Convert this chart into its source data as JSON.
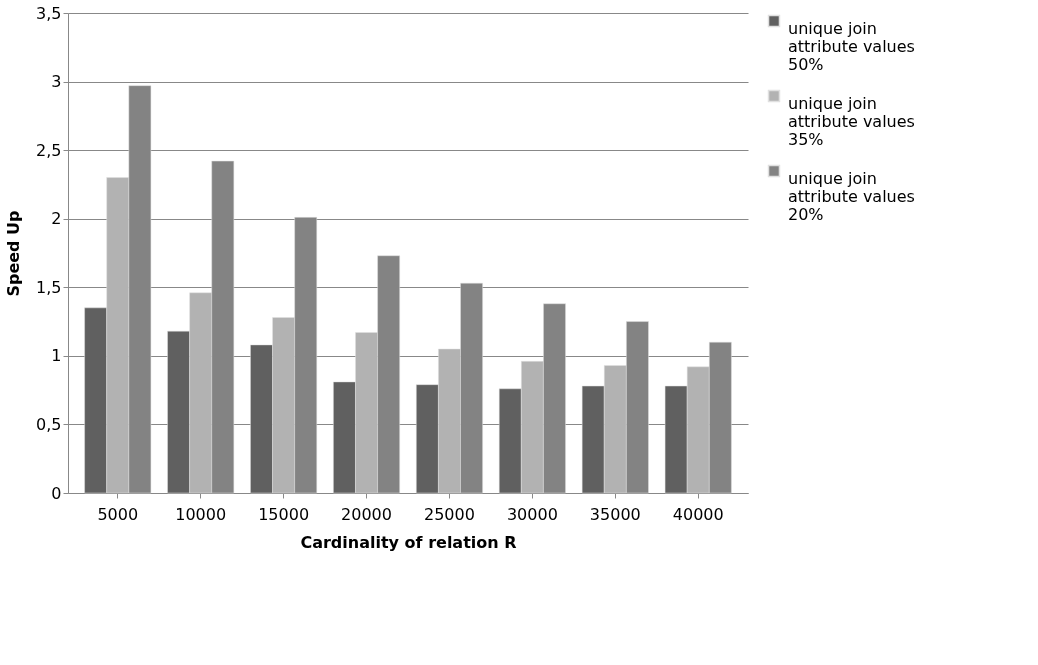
{
  "chart_data": {
    "type": "bar",
    "xlabel": "Cardinality of relation R",
    "ylabel": "Speed Up",
    "categories": [
      "5000",
      "10000",
      "15000",
      "20000",
      "25000",
      "30000",
      "35000",
      "40000"
    ],
    "series": [
      {
        "name": "unique join attribute values 50%",
        "color": "#606060",
        "values": [
          1.35,
          1.18,
          1.08,
          0.81,
          0.79,
          0.76,
          0.78,
          0.78
        ]
      },
      {
        "name": "unique join attribute values 35%",
        "color": "#b2b2b2",
        "values": [
          2.3,
          1.46,
          1.28,
          1.17,
          1.05,
          0.96,
          0.93,
          0.92
        ]
      },
      {
        "name": "unique join attribute values 20%",
        "color": "#838383",
        "values": [
          2.97,
          2.42,
          2.01,
          1.73,
          1.53,
          1.38,
          1.25,
          1.1
        ]
      }
    ],
    "ylim": [
      0,
      3.5
    ],
    "yticks": [
      0,
      {
        "value": 0.5,
        "label": "0,5"
      },
      1,
      {
        "value": 1.5,
        "label": "1,5"
      },
      2,
      {
        "value": 2.5,
        "label": "2,5"
      },
      3,
      {
        "value": 3.5,
        "label": "3,5"
      }
    ],
    "grid": "y",
    "legend": "right"
  }
}
